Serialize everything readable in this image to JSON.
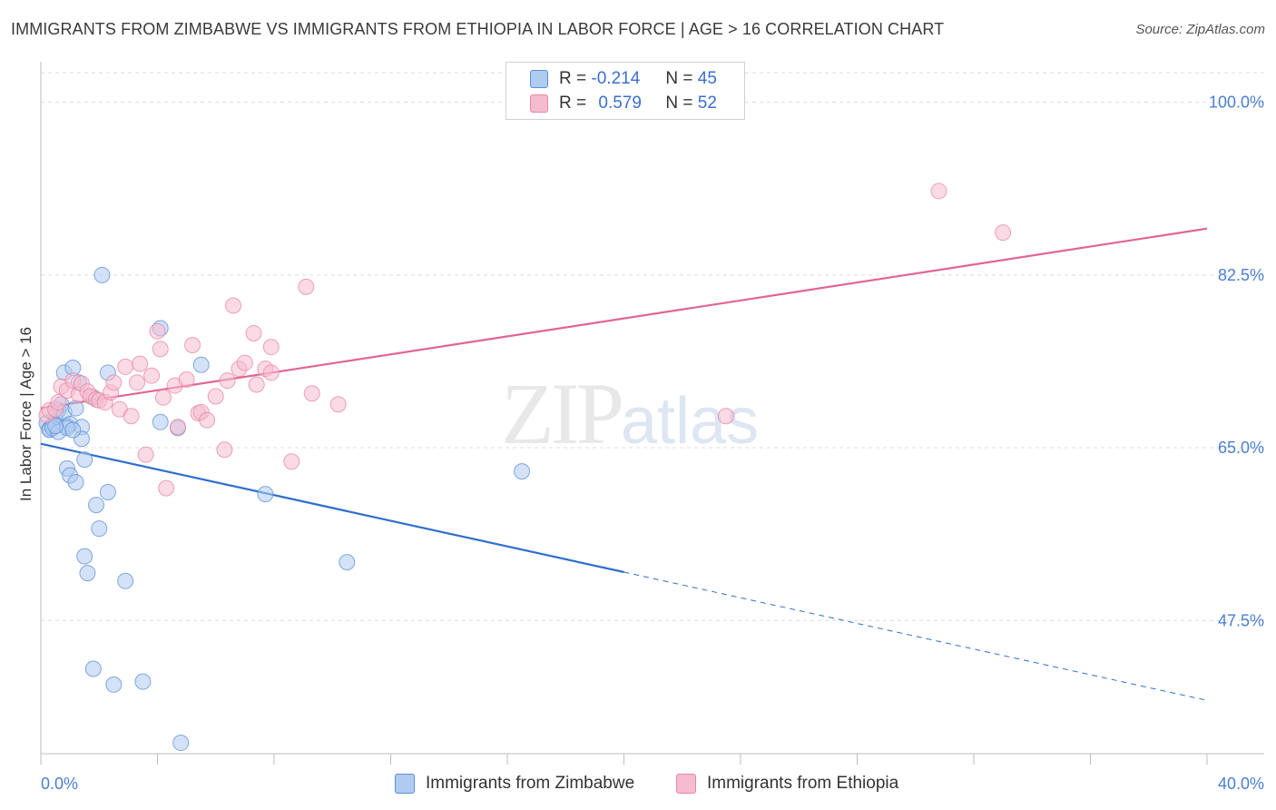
{
  "header": {
    "title": "IMMIGRANTS FROM ZIMBABWE VS IMMIGRANTS FROM ETHIOPIA IN LABOR FORCE | AGE > 16 CORRELATION CHART",
    "source": "Source: ZipAtlas.com"
  },
  "legend": {
    "rows": [
      {
        "r_label": "R =",
        "r_value": "-0.214",
        "n_label": "N =",
        "n_value": "45"
      },
      {
        "r_label": "R =",
        "r_value": "0.579",
        "n_label": "N =",
        "n_value": "52"
      }
    ]
  },
  "watermark": {
    "zip": "ZIP",
    "atlas": "atlas"
  },
  "colors": {
    "zimbabwe_fill": "#aecbf0",
    "zimbabwe_stroke": "#5b8fd6",
    "zimbabwe_line": "#2f6fcc",
    "ethiopia_fill": "#f5bcd0",
    "ethiopia_stroke": "#e8859f",
    "ethiopia_line": "#e0668f",
    "axis_text": "#4a7fd0"
  },
  "chart_data": {
    "type": "scatter",
    "title": "IMMIGRANTS FROM ZIMBABWE VS IMMIGRANTS FROM ETHIOPIA IN LABOR FORCE | AGE > 16 CORRELATION CHART",
    "xlabel": "",
    "ylabel": "In Labor Force | Age > 16",
    "xlim": [
      0,
      40
    ],
    "ylim": [
      34,
      103
    ],
    "x_tick_labels": [
      "0.0%",
      "40.0%"
    ],
    "y_ticks": [
      100.0,
      82.5,
      65.0,
      47.5
    ],
    "y_tick_labels": [
      "100.0%",
      "82.5%",
      "65.0%",
      "47.5%"
    ],
    "grid": true,
    "legend_position": "top-center",
    "series": [
      {
        "name": "Immigrants from Zimbabwe",
        "trend": {
          "x_start": 0,
          "y_start": 65.4,
          "x_solid_end": 20,
          "y_solid_end": 52.4,
          "x_end": 40,
          "y_end": 39.4
        },
        "points": [
          [
            0.2,
            67.5
          ],
          [
            0.3,
            66.9
          ],
          [
            0.4,
            67.2
          ],
          [
            0.5,
            68.3
          ],
          [
            0.6,
            68.8
          ],
          [
            0.7,
            69.4
          ],
          [
            0.8,
            72.6
          ],
          [
            0.8,
            68.6
          ],
          [
            0.9,
            67.2
          ],
          [
            0.9,
            62.9
          ],
          [
            1.0,
            67.4
          ],
          [
            1.0,
            62.2
          ],
          [
            1.1,
            73.1
          ],
          [
            1.2,
            61.5
          ],
          [
            1.2,
            69.0
          ],
          [
            1.3,
            71.6
          ],
          [
            1.4,
            67.1
          ],
          [
            1.4,
            65.9
          ],
          [
            1.5,
            63.8
          ],
          [
            1.5,
            54.0
          ],
          [
            1.6,
            52.3
          ],
          [
            1.8,
            70.1
          ],
          [
            1.9,
            59.2
          ],
          [
            2.0,
            56.8
          ],
          [
            1.8,
            42.6
          ],
          [
            2.1,
            82.5
          ],
          [
            2.3,
            72.6
          ],
          [
            2.3,
            60.5
          ],
          [
            2.5,
            41.0
          ],
          [
            2.9,
            51.5
          ],
          [
            3.5,
            41.3
          ],
          [
            4.1,
            67.6
          ],
          [
            4.1,
            77.1
          ],
          [
            4.7,
            67.0
          ],
          [
            4.8,
            35.1
          ],
          [
            5.5,
            73.4
          ],
          [
            7.7,
            60.3
          ],
          [
            10.5,
            53.4
          ],
          [
            16.5,
            62.6
          ],
          [
            0.3,
            66.8
          ],
          [
            0.4,
            67.0
          ],
          [
            0.6,
            66.6
          ],
          [
            0.9,
            67.0
          ],
          [
            1.1,
            66.8
          ],
          [
            0.5,
            67.2
          ]
        ]
      },
      {
        "name": "Immigrants from Ethiopia",
        "trend": {
          "x_start": 0,
          "y_start": 69.0,
          "x_end": 40,
          "y_end": 87.2
        },
        "points": [
          [
            0.2,
            68.3
          ],
          [
            0.3,
            68.8
          ],
          [
            0.5,
            68.9
          ],
          [
            0.6,
            69.6
          ],
          [
            0.7,
            71.2
          ],
          [
            0.9,
            70.8
          ],
          [
            1.1,
            71.8
          ],
          [
            1.3,
            70.4
          ],
          [
            1.4,
            71.5
          ],
          [
            1.6,
            70.7
          ],
          [
            1.7,
            70.2
          ],
          [
            1.9,
            69.9
          ],
          [
            2.0,
            69.8
          ],
          [
            2.2,
            69.6
          ],
          [
            2.4,
            70.6
          ],
          [
            2.5,
            71.6
          ],
          [
            2.7,
            68.9
          ],
          [
            2.9,
            73.2
          ],
          [
            3.1,
            68.2
          ],
          [
            3.3,
            71.6
          ],
          [
            3.4,
            73.5
          ],
          [
            3.6,
            64.3
          ],
          [
            3.8,
            72.3
          ],
          [
            4.0,
            76.8
          ],
          [
            4.1,
            75.0
          ],
          [
            4.2,
            70.1
          ],
          [
            4.3,
            60.9
          ],
          [
            4.6,
            71.3
          ],
          [
            4.7,
            67.1
          ],
          [
            5.0,
            71.9
          ],
          [
            5.2,
            75.4
          ],
          [
            5.4,
            68.5
          ],
          [
            5.5,
            68.6
          ],
          [
            5.7,
            67.8
          ],
          [
            6.0,
            70.2
          ],
          [
            6.3,
            64.8
          ],
          [
            6.4,
            71.8
          ],
          [
            6.6,
            79.4
          ],
          [
            6.8,
            73.0
          ],
          [
            7.0,
            73.6
          ],
          [
            7.3,
            76.6
          ],
          [
            7.4,
            71.4
          ],
          [
            7.7,
            73.0
          ],
          [
            7.9,
            75.2
          ],
          [
            7.9,
            72.6
          ],
          [
            8.6,
            63.6
          ],
          [
            9.1,
            81.3
          ],
          [
            9.3,
            70.5
          ],
          [
            10.2,
            69.4
          ],
          [
            23.5,
            68.2
          ],
          [
            30.8,
            91.0
          ],
          [
            33.0,
            86.8
          ]
        ]
      }
    ]
  },
  "bottom_legend": {
    "items": [
      "Immigrants from Zimbabwe",
      "Immigrants from Ethiopia"
    ]
  }
}
